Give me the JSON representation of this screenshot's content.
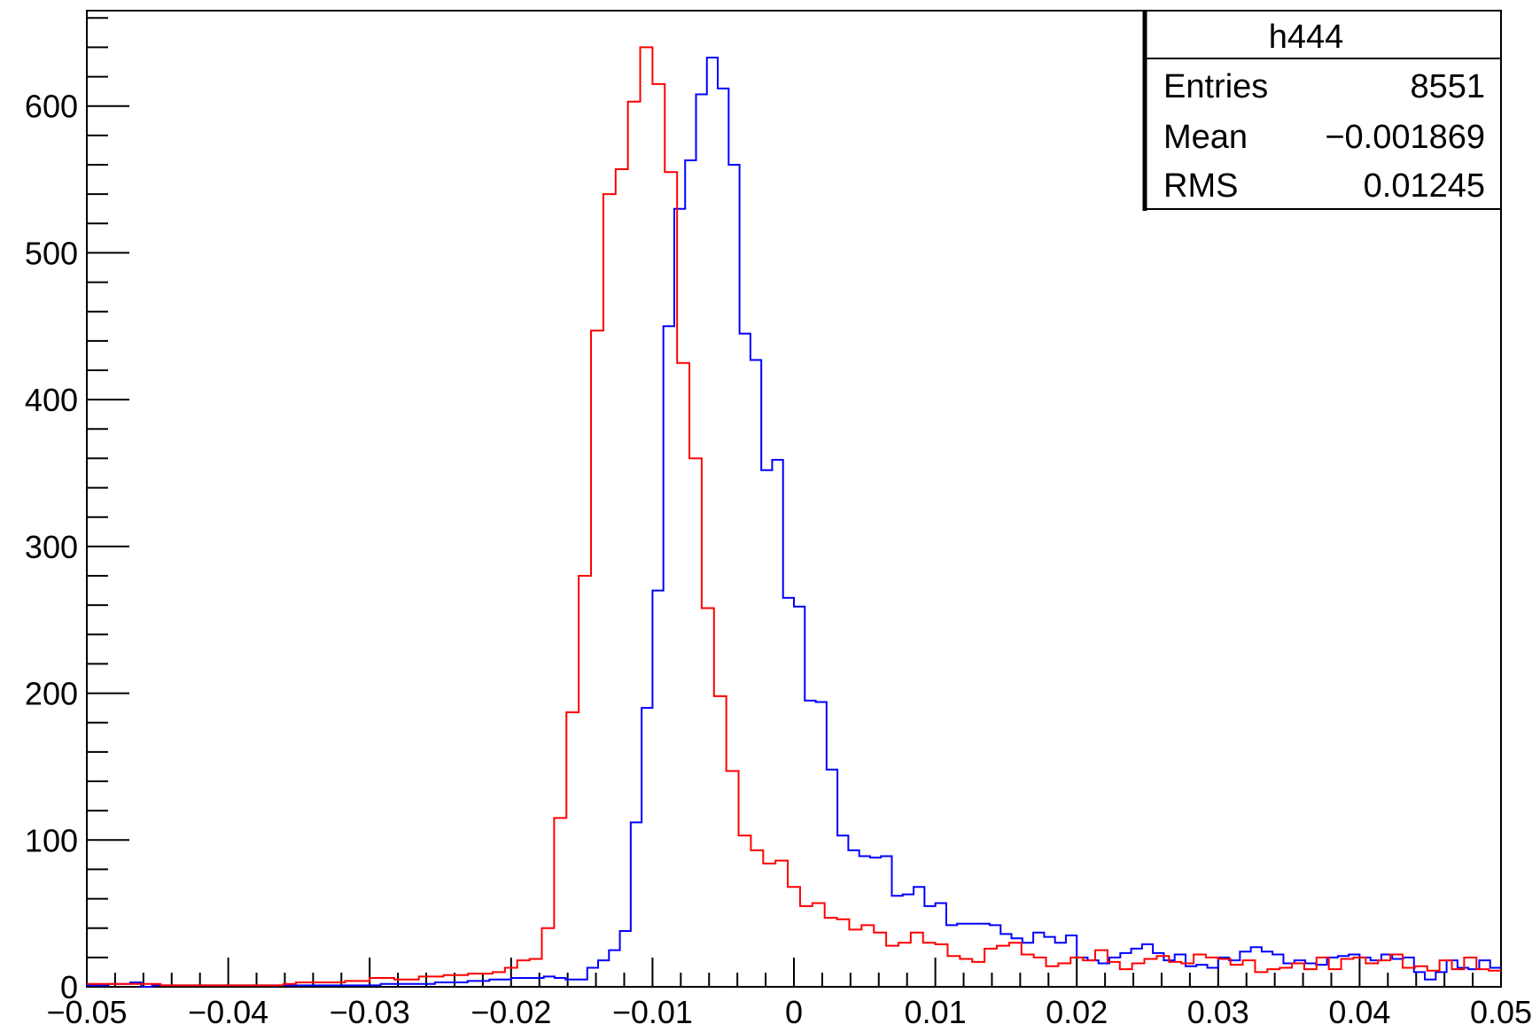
{
  "chart_data": {
    "type": "histogram",
    "xlim": [
      -0.05,
      0.05
    ],
    "ylim": [
      0,
      665
    ],
    "bins": 100,
    "x_ticks": [
      -0.05,
      -0.04,
      -0.03,
      -0.02,
      -0.01,
      0,
      0.01,
      0.02,
      0.03,
      0.04,
      0.05
    ],
    "x_tick_labels": [
      "−0.05",
      "−0.04",
      "−0.03",
      "−0.02",
      "−0.01",
      "0",
      "0.01",
      "0.02",
      "0.03",
      "0.04",
      "0.05"
    ],
    "y_ticks": [
      0,
      100,
      200,
      300,
      400,
      500,
      600
    ],
    "y_tick_labels": [
      "0",
      "100",
      "200",
      "300",
      "400",
      "500",
      "600"
    ],
    "series": [
      {
        "color": "#0000ff",
        "values": [
          1,
          1,
          2,
          2,
          3,
          0,
          1,
          1,
          1,
          1,
          1,
          1,
          1,
          1,
          1,
          1,
          1,
          1,
          1,
          1,
          1,
          1,
          1,
          1,
          1,
          1,
          1,
          2,
          2,
          2,
          2,
          2,
          3,
          3,
          3,
          4,
          4,
          5,
          5,
          6,
          6,
          6,
          7,
          6,
          5,
          5,
          13,
          18,
          25,
          38,
          112,
          190,
          270,
          450,
          530,
          563,
          608,
          633,
          612,
          560,
          445,
          427,
          352,
          359,
          265,
          259,
          195,
          194,
          148,
          103,
          93,
          89,
          88,
          89,
          62,
          63,
          68,
          55,
          57,
          42,
          43,
          43,
          43,
          42,
          36,
          33,
          30,
          37,
          34,
          30,
          35,
          20,
          18,
          16,
          20,
          23,
          26,
          29,
          23,
          18,
          22,
          14,
          15,
          13,
          20,
          18,
          24,
          27,
          24,
          22,
          16,
          18,
          16,
          15,
          20,
          21,
          22,
          20,
          18,
          22,
          19,
          20,
          10,
          5,
          10,
          18,
          13,
          12,
          18,
          13
        ]
      },
      {
        "color": "#ff0000",
        "values": [
          2,
          2,
          2,
          2,
          2,
          2,
          1,
          1,
          1,
          1,
          1,
          1,
          1,
          1,
          1,
          1,
          2,
          3,
          3,
          3,
          3,
          4,
          4,
          6,
          6,
          5,
          5,
          7,
          7,
          8,
          8,
          9,
          9,
          10,
          13,
          18,
          19,
          40,
          115,
          187,
          280,
          447,
          540,
          557,
          603,
          640,
          615,
          555,
          425,
          360,
          258,
          198,
          147,
          103,
          93,
          84,
          86,
          68,
          55,
          57,
          47,
          46,
          39,
          42,
          37,
          28,
          30,
          37,
          30,
          29,
          21,
          19,
          17,
          26,
          28,
          30,
          22,
          20,
          14,
          16,
          20,
          18,
          25,
          17,
          12,
          16,
          19,
          21,
          17,
          16,
          22,
          20,
          19,
          15,
          18,
          10,
          12,
          13,
          16,
          12,
          20,
          12,
          19,
          20,
          16,
          18,
          22,
          13,
          14,
          11,
          18,
          12,
          20,
          12,
          11
        ]
      }
    ],
    "stats_box": {
      "name": "h444",
      "rows": [
        {
          "label": "Entries",
          "value": "8551"
        },
        {
          "label": "Mean",
          "value": "−0.001869"
        },
        {
          "label": "RMS",
          "value": "0.01245"
        }
      ]
    }
  }
}
